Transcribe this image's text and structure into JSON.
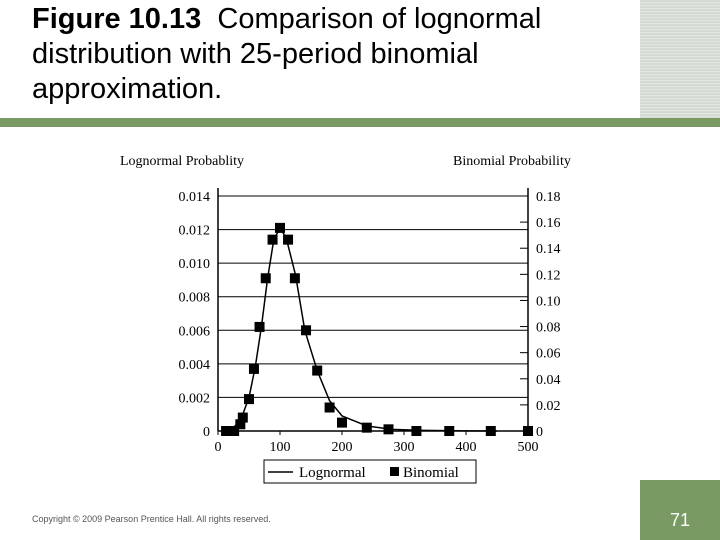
{
  "slide": {
    "title_bold": "Figure 10.13",
    "title_rest": "Comparison of lognormal distribution with 25-period binomial approximation.",
    "copyright": "Copyright © 2009 Pearson Prentice Hall. All rights reserved.",
    "page_number": "71"
  },
  "colors": {
    "accent_green": "#7a9a64",
    "ink": "#000000"
  },
  "chart_data": {
    "type": "line",
    "title": "",
    "xlabel": "",
    "y_left_label": "Lognormal Probablity",
    "y_right_label": "Binomial Probability",
    "xlim": [
      0,
      500
    ],
    "ylim_left": [
      0,
      0.014
    ],
    "ylim_right": [
      0,
      0.18
    ],
    "x_ticks": [
      0,
      100,
      200,
      300,
      400,
      500
    ],
    "x_tick_labels": [
      "0",
      "100",
      "200",
      "300",
      "400",
      "500"
    ],
    "y_left_ticks": [
      0,
      0.002,
      0.004,
      0.006,
      0.008,
      0.01,
      0.012,
      0.014
    ],
    "y_left_tick_labels": [
      "0",
      "0.002",
      "0.004",
      "0.006",
      "0.008",
      "0.010",
      "0.012",
      "0.014"
    ],
    "y_right_ticks": [
      0,
      0.02,
      0.04,
      0.06,
      0.08,
      0.1,
      0.12,
      0.14,
      0.16,
      0.18
    ],
    "y_right_tick_labels": [
      "0",
      "0.02",
      "0.04",
      "0.06",
      "0.08",
      "0.10",
      "0.12",
      "0.14",
      "0.16",
      "0.18"
    ],
    "grid": "horizontal",
    "legend": {
      "placement": "bottom-center",
      "entries": [
        "Lognormal",
        "Binomial"
      ]
    },
    "series": [
      {
        "name": "Lognormal",
        "kind": "line",
        "axis": "left",
        "x": [
          15,
          25,
          35,
          40,
          50,
          60,
          70,
          80,
          90,
          100,
          110,
          125,
          140,
          160,
          180,
          200,
          240,
          280,
          330,
          400,
          450
        ],
        "y": [
          0.0,
          0.0002,
          0.0006,
          0.001,
          0.002,
          0.0038,
          0.0062,
          0.0091,
          0.0114,
          0.0121,
          0.0115,
          0.0093,
          0.006,
          0.0036,
          0.0018,
          0.0009,
          0.0003,
          0.0001,
          4e-05,
          1e-05,
          0.0
        ]
      },
      {
        "name": "Binomial",
        "kind": "markers",
        "axis": "left",
        "x": [
          13,
          26,
          36,
          40,
          50,
          58,
          67,
          77,
          88,
          100,
          113,
          124,
          142,
          160,
          180,
          200,
          240,
          275,
          320,
          373,
          440,
          500
        ],
        "y": [
          0.0,
          0.0,
          0.0004,
          0.0008,
          0.0019,
          0.0037,
          0.0062,
          0.0091,
          0.0114,
          0.0121,
          0.0114,
          0.0091,
          0.006,
          0.0036,
          0.0014,
          0.0005,
          0.0002,
          0.0001,
          0.0,
          0.0,
          0.0,
          0.0
        ]
      }
    ]
  }
}
